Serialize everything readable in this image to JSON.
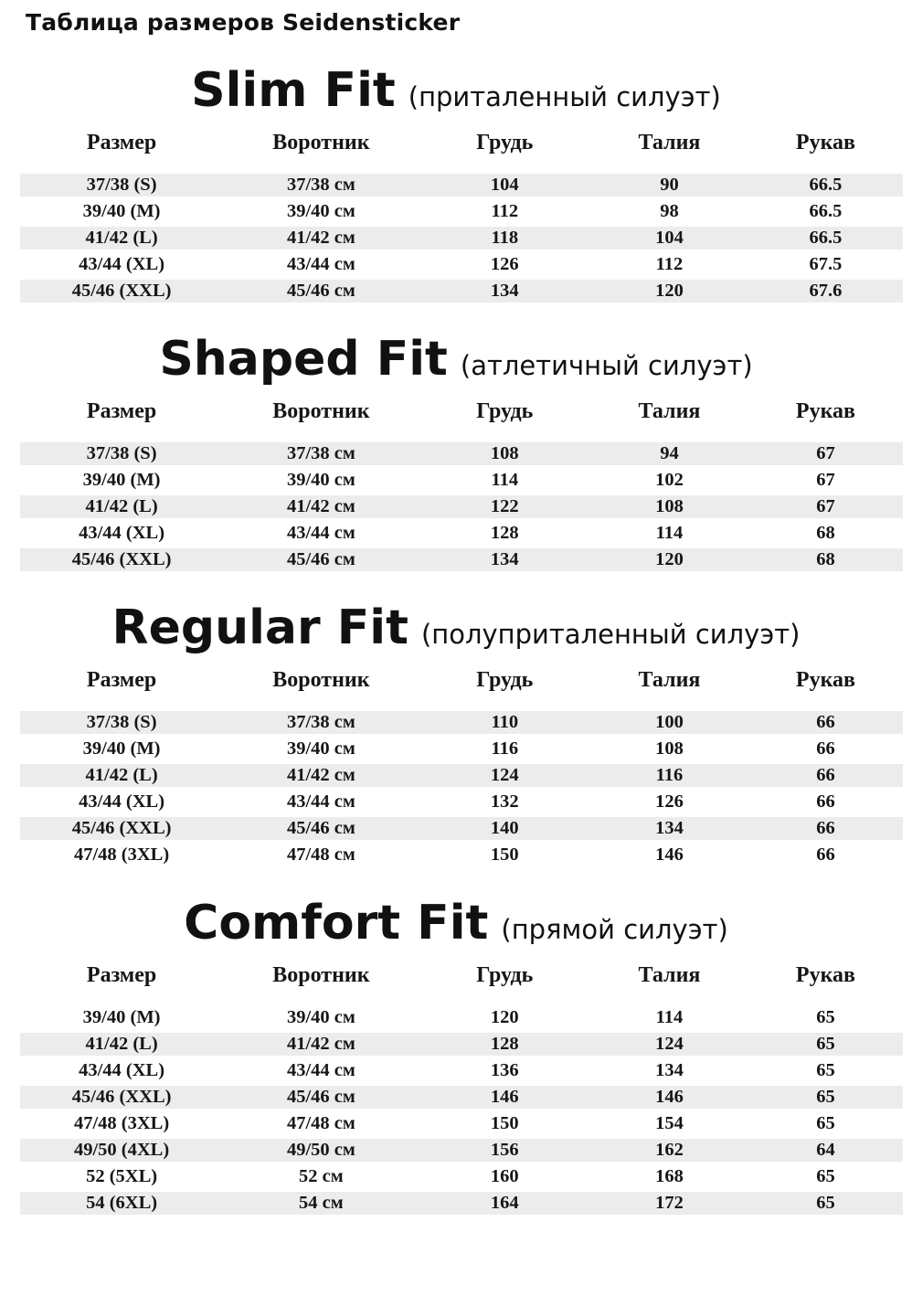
{
  "page_title": "Таблица размеров Seidensticker",
  "columns": [
    "Размер",
    "Воротник",
    "Грудь",
    "Талия",
    "Рукав"
  ],
  "colors": {
    "background": "#ffffff",
    "text": "#1b1b1b",
    "row_shade": "#ececec"
  },
  "sections": [
    {
      "name": "Slim Fit",
      "subtitle": "(приталенный силуэт)",
      "stripe_offset": 0,
      "rows": [
        [
          "37/38 (S)",
          "37/38 см",
          "104",
          "90",
          "66.5"
        ],
        [
          "39/40 (M)",
          "39/40 см",
          "112",
          "98",
          "66.5"
        ],
        [
          "41/42 (L)",
          "41/42 см",
          "118",
          "104",
          "66.5"
        ],
        [
          "43/44 (XL)",
          "43/44 см",
          "126",
          "112",
          "67.5"
        ],
        [
          "45/46 (XXL)",
          "45/46 см",
          "134",
          "120",
          "67.6"
        ]
      ]
    },
    {
      "name": "Shaped Fit",
      "subtitle": "(атлетичный силуэт)",
      "stripe_offset": 0,
      "rows": [
        [
          "37/38 (S)",
          "37/38 см",
          "108",
          "94",
          "67"
        ],
        [
          "39/40 (M)",
          "39/40 см",
          "114",
          "102",
          "67"
        ],
        [
          "41/42 (L)",
          "41/42 см",
          "122",
          "108",
          "67"
        ],
        [
          "43/44 (XL)",
          "43/44 см",
          "128",
          "114",
          "68"
        ],
        [
          "45/46 (XXL)",
          "45/46 см",
          "134",
          "120",
          "68"
        ]
      ]
    },
    {
      "name": "Regular Fit",
      "subtitle": "(полуприталенный силуэт)",
      "stripe_offset": 0,
      "rows": [
        [
          "37/38 (S)",
          "37/38 см",
          "110",
          "100",
          "66"
        ],
        [
          "39/40 (M)",
          "39/40 см",
          "116",
          "108",
          "66"
        ],
        [
          "41/42 (L)",
          "41/42 см",
          "124",
          "116",
          "66"
        ],
        [
          "43/44 (XL)",
          "43/44 см",
          "132",
          "126",
          "66"
        ],
        [
          "45/46 (XXL)",
          "45/46 см",
          "140",
          "134",
          "66"
        ],
        [
          "47/48 (3XL)",
          "47/48 см",
          "150",
          "146",
          "66"
        ]
      ]
    },
    {
      "name": "Comfort Fit",
      "subtitle": "(прямой силуэт)",
      "stripe_offset": 1,
      "rows": [
        [
          "39/40 (M)",
          "39/40 см",
          "120",
          "114",
          "65"
        ],
        [
          "41/42 (L)",
          "41/42 см",
          "128",
          "124",
          "65"
        ],
        [
          "43/44 (XL)",
          "43/44 см",
          "136",
          "134",
          "65"
        ],
        [
          "45/46 (XXL)",
          "45/46 см",
          "146",
          "146",
          "65"
        ],
        [
          "47/48 (3XL)",
          "47/48 см",
          "150",
          "154",
          "65"
        ],
        [
          "49/50 (4XL)",
          "49/50 см",
          "156",
          "162",
          "64"
        ],
        [
          "52 (5XL)",
          "52 см",
          "160",
          "168",
          "65"
        ],
        [
          "54 (6XL)",
          "54 см",
          "164",
          "172",
          "65"
        ]
      ]
    }
  ]
}
